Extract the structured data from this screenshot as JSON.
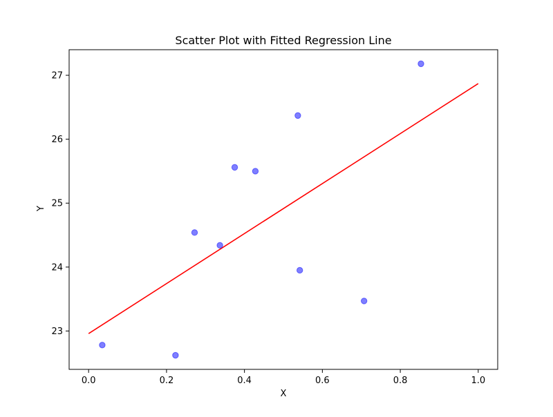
{
  "chart_data": {
    "type": "scatter",
    "title": "Scatter Plot with Fitted Regression Line",
    "xlabel": "X",
    "ylabel": "Y",
    "xlim": [
      -0.05,
      1.05
    ],
    "ylim": [
      22.4,
      27.4
    ],
    "x_ticks": [
      0.0,
      0.2,
      0.4,
      0.6,
      0.8,
      1.0
    ],
    "x_tick_labels": [
      "0.0",
      "0.2",
      "0.4",
      "0.6",
      "0.8",
      "1.0"
    ],
    "y_ticks": [
      23,
      24,
      25,
      26,
      27
    ],
    "y_tick_labels": [
      "23",
      "24",
      "25",
      "26",
      "27"
    ],
    "grid": false,
    "series": [
      {
        "type": "scatter",
        "color": "#0000ff",
        "alpha": 0.5,
        "points": [
          {
            "x": 0.035,
            "y": 22.78
          },
          {
            "x": 0.223,
            "y": 22.62
          },
          {
            "x": 0.272,
            "y": 24.54
          },
          {
            "x": 0.337,
            "y": 24.34
          },
          {
            "x": 0.375,
            "y": 25.56
          },
          {
            "x": 0.428,
            "y": 25.5
          },
          {
            "x": 0.537,
            "y": 26.37
          },
          {
            "x": 0.542,
            "y": 23.95
          },
          {
            "x": 0.707,
            "y": 23.47
          },
          {
            "x": 0.853,
            "y": 27.18
          }
        ]
      },
      {
        "type": "line",
        "color": "#ff0000",
        "points": [
          {
            "x": 0.0,
            "y": 22.96
          },
          {
            "x": 1.0,
            "y": 26.87
          }
        ]
      }
    ]
  }
}
